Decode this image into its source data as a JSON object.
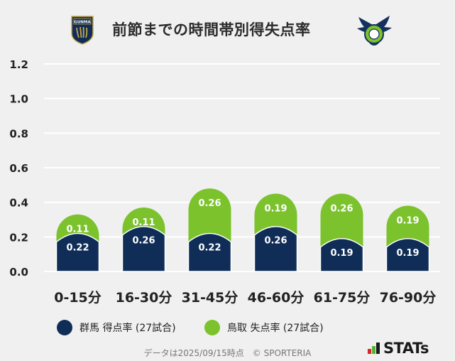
{
  "header": {
    "title": "前節までの時間帯別得失点率",
    "left_emblem_text": "GUNMA"
  },
  "colors": {
    "gunma": "#0f2d57",
    "tottori": "#7cc22d",
    "grid": "#ffffff",
    "background": "#f0f0f0"
  },
  "chart_data": {
    "type": "bar",
    "stacked": true,
    "categories": [
      "0-15分",
      "16-30分",
      "31-45分",
      "46-60分",
      "61-75分",
      "76-90分"
    ],
    "series": [
      {
        "name": "群馬 得点率 (27試合)",
        "values": [
          0.22,
          0.26,
          0.22,
          0.26,
          0.19,
          0.19
        ]
      },
      {
        "name": "鳥取 失点率 (27試合)",
        "values": [
          0.11,
          0.11,
          0.26,
          0.19,
          0.26,
          0.19
        ]
      }
    ],
    "y_ticks": [
      "0.0",
      "0.2",
      "0.4",
      "0.6",
      "0.8",
      "1.0",
      "1.2"
    ],
    "ylim": [
      0,
      1.2
    ],
    "title": "前節までの時間帯別得失点率",
    "legend_position": "bottom"
  },
  "legend": {
    "gunma_label": "群馬 得点率 (27試合)",
    "tottori_label": "鳥取 失点率 (27試合)"
  },
  "footer": {
    "note": "データは2025/09/15時点　© SPORTERIA",
    "brand": "STATs"
  }
}
